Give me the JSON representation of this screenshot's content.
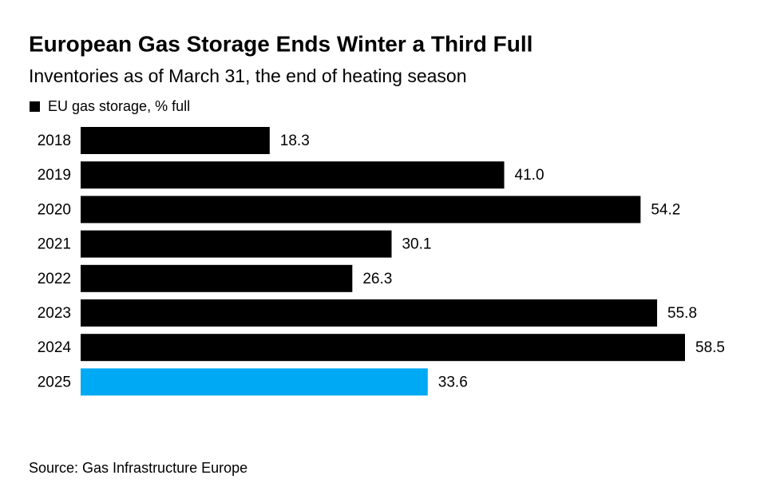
{
  "chart_data": {
    "type": "hbar",
    "title": "European Gas Storage Ends Winter a Third Full",
    "subtitle": "Inventories as of March 31, the end of heating season",
    "source": "Source: Gas Infrastructure Europe",
    "categories": [
      "2018",
      "2019",
      "2020",
      "2021",
      "2022",
      "2023",
      "2024",
      "2025"
    ],
    "series": [
      {
        "name": "EU gas storage, % full",
        "color": "#000000",
        "values": [
          18.3,
          41.0,
          54.2,
          30.1,
          26.3,
          55.8,
          58.5,
          33.6
        ],
        "value_labels": [
          "18.3",
          "41.0",
          "54.2",
          "30.1",
          "26.3",
          "55.8",
          "58.5",
          "33.6"
        ],
        "colors": [
          "#000000",
          "#000000",
          "#000000",
          "#000000",
          "#000000",
          "#000000",
          "#000000",
          "#00a9f4"
        ]
      }
    ]
  }
}
